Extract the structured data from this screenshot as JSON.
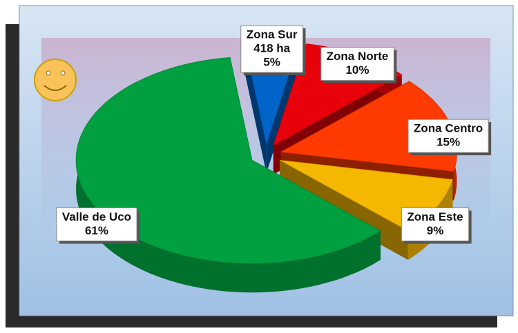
{
  "chart_data": {
    "type": "pie",
    "categories": [
      "Zona Norte",
      "Zona Centro",
      "Zona Este",
      "Valle de Uco",
      "Zona Sur"
    ],
    "values": [
      10,
      15,
      9,
      61,
      5
    ],
    "value_labels": [
      "10%",
      "15%",
      "9%",
      "61%",
      "5%"
    ],
    "annotations": [
      null,
      null,
      null,
      null,
      "418 ha"
    ],
    "colors": [
      "#e8000a",
      "#ff3a00",
      "#f5b800",
      "#00a040",
      "#0064c8"
    ],
    "exploded": true,
    "three_d": true
  }
}
